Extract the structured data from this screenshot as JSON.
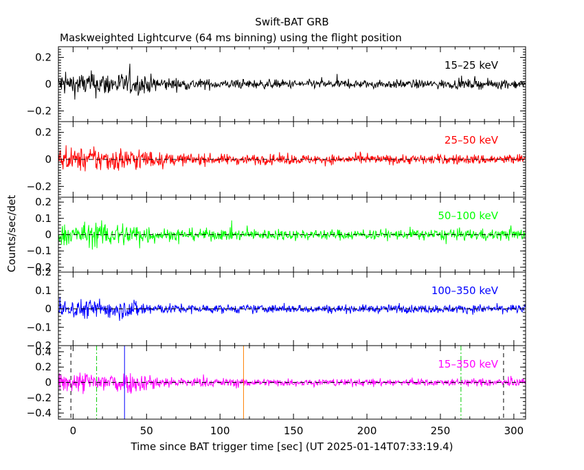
{
  "chart_data": {
    "type": "line",
    "title": "Swift-BAT GRB",
    "subtitle": "Maskweighted Lightcurve (64 ms binning) using the flight position",
    "ylabel": "Counts/sec/det",
    "xlabel": "Time since BAT trigger time [sec] (UT 2025-01-14T07:33:19.4)",
    "xlim": [
      -10,
      308
    ],
    "x_ticks": [
      0,
      50,
      100,
      150,
      200,
      250,
      300
    ],
    "x_tick_labels": [
      "0",
      "50",
      "100",
      "150",
      "200",
      "250",
      "300"
    ],
    "bin_seconds": 0.064,
    "panels": [
      {
        "name": "15–25 keV",
        "color": "#000000",
        "ylim": [
          -0.28,
          0.28
        ],
        "y_ticks": [
          -0.2,
          0,
          0.2
        ],
        "y_tick_labels": [
          "−0.2",
          "0",
          "0.2"
        ],
        "zero_line": false,
        "noise_envelope": [
          [
            -10,
            0.11
          ],
          [
            20,
            0.12
          ],
          [
            45,
            0.1
          ],
          [
            65,
            0.06
          ],
          [
            100,
            0.045
          ],
          [
            200,
            0.04
          ],
          [
            308,
            0.045
          ]
        ]
      },
      {
        "name": "25–50 keV",
        "color": "#ff0000",
        "ylim": [
          -0.28,
          0.28
        ],
        "y_ticks": [
          -0.2,
          0,
          0.2
        ],
        "y_tick_labels": [
          "−0.2",
          "0",
          "0.2"
        ],
        "zero_line": true,
        "noise_envelope": [
          [
            -10,
            0.1
          ],
          [
            20,
            0.12
          ],
          [
            45,
            0.11
          ],
          [
            60,
            0.06
          ],
          [
            100,
            0.05
          ],
          [
            200,
            0.045
          ],
          [
            308,
            0.05
          ]
        ]
      },
      {
        "name": "50–100 keV",
        "color": "#00ff00",
        "ylim": [
          -0.23,
          0.23
        ],
        "y_ticks": [
          -0.2,
          -0.1,
          0,
          0.1,
          0.2
        ],
        "y_tick_labels": [
          "−0.2",
          "−0.1",
          "0",
          "0.1",
          "0.2"
        ],
        "zero_line": true,
        "noise_envelope": [
          [
            -10,
            0.08
          ],
          [
            20,
            0.1
          ],
          [
            45,
            0.095
          ],
          [
            60,
            0.05
          ],
          [
            100,
            0.045
          ],
          [
            200,
            0.04
          ],
          [
            308,
            0.045
          ]
        ]
      },
      {
        "name": "100–350 keV",
        "color": "#0000ff",
        "ylim": [
          -0.2,
          0.2
        ],
        "y_ticks": [
          -0.2,
          -0.1,
          0,
          0.1,
          0.2
        ],
        "y_tick_labels": [
          "−0.2",
          "−0.1",
          "0",
          "0.1",
          "0.2"
        ],
        "zero_line": true,
        "noise_envelope": [
          [
            -10,
            0.06
          ],
          [
            20,
            0.07
          ],
          [
            45,
            0.065
          ],
          [
            60,
            0.035
          ],
          [
            100,
            0.03
          ],
          [
            200,
            0.028
          ],
          [
            308,
            0.03
          ]
        ]
      },
      {
        "name": "15–350 keV",
        "color": "#ff00ff",
        "ylim": [
          -0.48,
          0.48
        ],
        "y_ticks": [
          -0.4,
          -0.2,
          0,
          0.2,
          0.4
        ],
        "y_tick_labels": [
          "−0.4",
          "−0.2",
          "0",
          "0.2",
          "0.4"
        ],
        "zero_line": true,
        "noise_envelope": [
          [
            -10,
            0.16
          ],
          [
            20,
            0.2
          ],
          [
            45,
            0.17
          ],
          [
            65,
            0.09
          ],
          [
            100,
            0.07
          ],
          [
            200,
            0.06
          ],
          [
            308,
            0.065
          ]
        ]
      }
    ],
    "markers": [
      {
        "x": -1.5,
        "color": "#000000",
        "style": "dashed"
      },
      {
        "x": 16,
        "color": "#00cc00",
        "style": "dashdot"
      },
      {
        "x": 35,
        "color": "#0000ff",
        "style": "solid"
      },
      {
        "x": 116,
        "color": "#ff8000",
        "style": "solid"
      },
      {
        "x": 264,
        "color": "#00cc00",
        "style": "dashdot"
      },
      {
        "x": 293,
        "color": "#000000",
        "style": "dashed"
      }
    ]
  }
}
